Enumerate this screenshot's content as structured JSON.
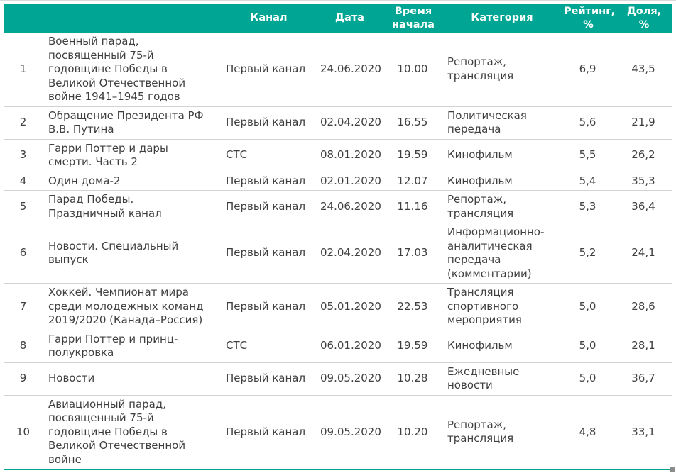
{
  "theme": {
    "header_bg": "#00A693",
    "header_text": "#FFFFFF",
    "body_text": "#3F3F3F",
    "row_border": "#D3D3D3",
    "bottom_border": "#00A693"
  },
  "table": {
    "columns": [
      {
        "key": "num",
        "label": ""
      },
      {
        "key": "title",
        "label": ""
      },
      {
        "key": "channel",
        "label": "Канал"
      },
      {
        "key": "date",
        "label": "Дата"
      },
      {
        "key": "time",
        "label": "Время\nначала"
      },
      {
        "key": "category",
        "label": "Категория"
      },
      {
        "key": "rating",
        "label": "Рейтинг,\n%"
      },
      {
        "key": "share",
        "label": "Доля,\n%"
      }
    ],
    "rows": [
      {
        "num": "1",
        "title": "Военный парад,\nпосвященный 75-й\nгодовщине Победы в\nВеликой Отечественной\nвойне 1941–1945 годов",
        "channel": "Первый канал",
        "date": "24.06.2020",
        "time": "10.00",
        "category": "Репортаж,\nтрансляция",
        "rating": "6,9",
        "share": "43,5"
      },
      {
        "num": "2",
        "title": "Обращение Президента РФ\nВ.В. Путина",
        "channel": "Первый канал",
        "date": "02.04.2020",
        "time": "16.55",
        "category": "Политическая\nпередача",
        "rating": "5,6",
        "share": "21,9"
      },
      {
        "num": "3",
        "title": "Гарри Поттер и дары\nсмерти. Часть 2",
        "channel": "СТС",
        "date": "08.01.2020",
        "time": "19.59",
        "category": "Кинофильм",
        "rating": "5,5",
        "share": "26,2"
      },
      {
        "num": "4",
        "title": "Один дома-2",
        "channel": "Первый канал",
        "date": "02.01.2020",
        "time": "12.07",
        "category": "Кинофильм",
        "rating": "5,4",
        "share": "35,3"
      },
      {
        "num": "5",
        "title": "Парад Победы.\nПраздничный канал",
        "channel": "Первый канал",
        "date": "24.06.2020",
        "time": "11.16",
        "category": "Репортаж,\nтрансляция",
        "rating": "5,3",
        "share": "36,4"
      },
      {
        "num": "6",
        "title": "Новости. Специальный\nвыпуск",
        "channel": "Первый канал",
        "date": "02.04.2020",
        "time": "17.03",
        "category": "Информационно-\nаналитическая\nпередача\n(комментарии)",
        "rating": "5,2",
        "share": "24,1"
      },
      {
        "num": "7",
        "title": "Хоккей. Чемпионат мира\nсреди молодежных команд\n2019/2020 (Канада–Россия)",
        "channel": "Первый канал",
        "date": "05.01.2020",
        "time": "22.53",
        "category": "Трансляция\nспортивного\nмероприятия",
        "rating": "5,0",
        "share": "28,6"
      },
      {
        "num": "8",
        "title": "Гарри Поттер и принц-\nполукровка",
        "channel": "СТС",
        "date": "06.01.2020",
        "time": "19.59",
        "category": "Кинофильм",
        "rating": "5,0",
        "share": "28,1"
      },
      {
        "num": "9",
        "title": "Новости",
        "channel": "Первый канал",
        "date": "09.05.2020",
        "time": "10.28",
        "category": "Ежедневные\nновости",
        "rating": "5,0",
        "share": "36,7"
      },
      {
        "num": "10",
        "title": "Авиационный парад,\nпосвященный 75-й\nгодовщине Победы в\nВеликой Отечественной\nвойне",
        "channel": "Первый канал",
        "date": "09.05.2020",
        "time": "10.20",
        "category": "Репортаж,\nтрансляция",
        "rating": "4,8",
        "share": "33,1"
      }
    ]
  }
}
